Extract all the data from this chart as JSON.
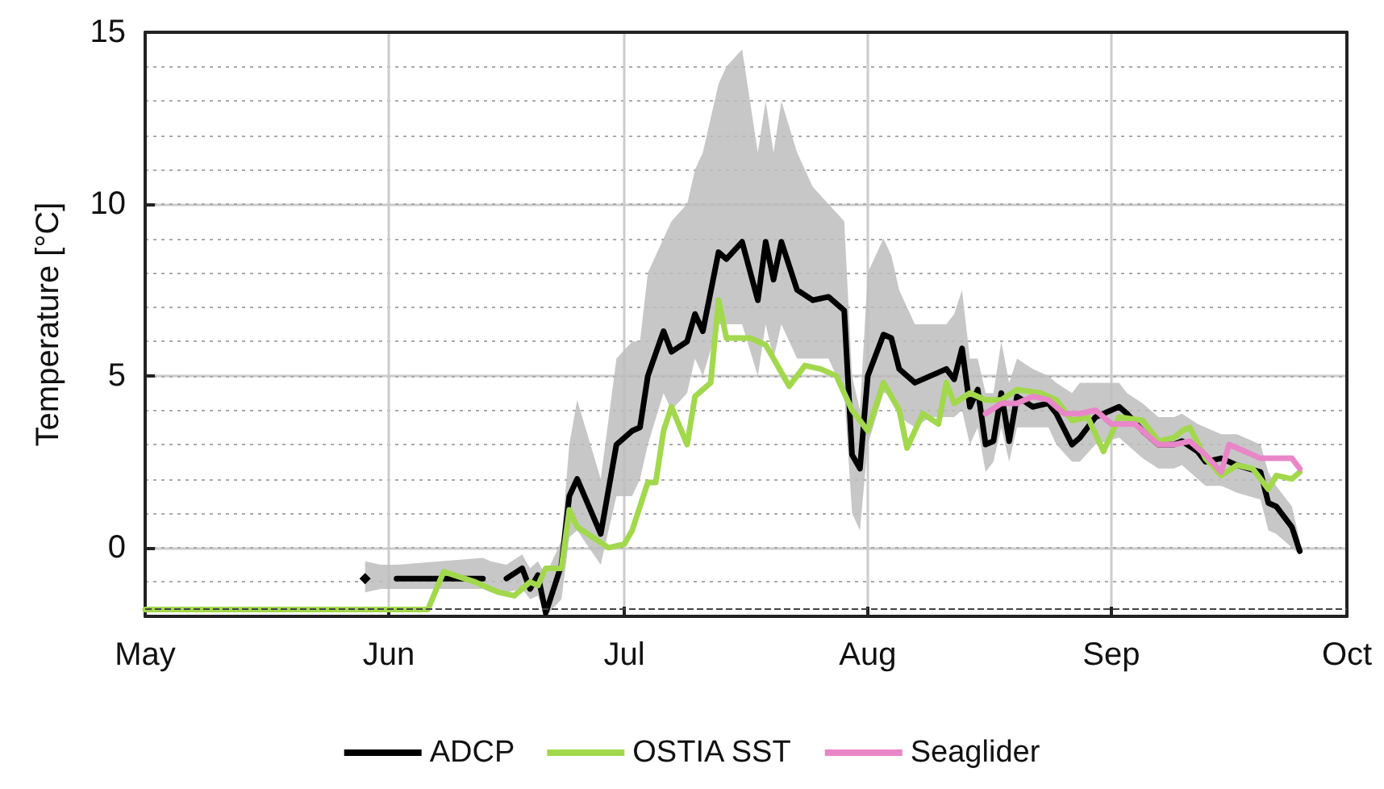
{
  "chart_data": {
    "type": "line",
    "ylabel": "Temperature [°C]",
    "xlim": [
      "--05-01",
      "--10-01"
    ],
    "xticks": [
      {
        "value": "--05-01",
        "label": "May"
      },
      {
        "value": "--06-01",
        "label": "Jun"
      },
      {
        "value": "--07-01",
        "label": "Jul"
      },
      {
        "value": "--08-01",
        "label": "Aug"
      },
      {
        "value": "--09-01",
        "label": "Sep"
      },
      {
        "value": "--10-01",
        "label": "Oct"
      }
    ],
    "ylim": [
      -2,
      15
    ],
    "yticks": [
      0,
      5,
      10,
      15
    ],
    "grid": true,
    "legend": "bottom",
    "marker": "none",
    "line_style": "solid",
    "ref_lines": [
      {
        "axis": "y",
        "value": -1.8,
        "color": "#444444",
        "line_style": "dashed"
      }
    ],
    "series": [
      {
        "name": "ADCP",
        "color": "#000000",
        "x": [
          "--05-29",
          "--05-31",
          "--06-02",
          "--06-13",
          "--06-14",
          "--06-16",
          "--06-18",
          "--06-19",
          "--06-20",
          "--06-21",
          "--06-23",
          "--06-24",
          "--06-25",
          "--06-28",
          "--06-30",
          "--07-02",
          "--07-03",
          "--07-04",
          "--07-06",
          "--07-07",
          "--07-09",
          "--07-10",
          "--07-11",
          "--07-13",
          "--07-14",
          "--07-16",
          "--07-18",
          "--07-19",
          "--07-20",
          "--07-21",
          "--07-23",
          "--07-25",
          "--07-27",
          "--07-29",
          "--07-30",
          "--07-31",
          "--08-01",
          "--08-03",
          "--08-04",
          "--08-05",
          "--08-07",
          "--08-09",
          "--08-11",
          "--08-12",
          "--08-13",
          "--08-14",
          "--08-15",
          "--08-16",
          "--08-17",
          "--08-18",
          "--08-19",
          "--08-20",
          "--08-22",
          "--08-24",
          "--08-25",
          "--08-27",
          "--08-28",
          "--08-30",
          "--09-02",
          "--09-03",
          "--09-05",
          "--09-07",
          "--09-09",
          "--09-10",
          "--09-12",
          "--09-13",
          "--09-15",
          "--09-17",
          "--09-20",
          "--09-21",
          "--09-22",
          "--09-24",
          "--09-25"
        ],
        "values": [
          -0.9,
          null,
          -0.9,
          -0.9,
          null,
          -0.9,
          -0.6,
          -1.2,
          -0.8,
          -1.9,
          -0.5,
          1.5,
          2.0,
          0.4,
          3.0,
          3.4,
          3.5,
          5.0,
          6.3,
          5.7,
          6.0,
          6.8,
          6.3,
          8.6,
          8.4,
          8.9,
          7.2,
          8.9,
          7.8,
          8.9,
          7.5,
          7.2,
          7.3,
          6.9,
          2.7,
          2.3,
          5.0,
          6.2,
          6.1,
          5.2,
          4.8,
          5.0,
          5.2,
          4.9,
          5.8,
          4.1,
          4.6,
          3.0,
          3.1,
          4.5,
          3.1,
          4.4,
          4.1,
          4.2,
          3.9,
          3.0,
          3.2,
          3.8,
          4.1,
          3.9,
          3.4,
          3.0,
          3.0,
          3.1,
          2.8,
          2.5,
          2.6,
          2.4,
          2.2,
          1.3,
          1.2,
          0.6,
          -0.1
        ],
        "lower": [
          -1.3,
          -1.2,
          -1.2,
          -1.2,
          -1.3,
          -1.3,
          -1.2,
          -1.5,
          -1.4,
          -2.0,
          -1.5,
          0.3,
          0.5,
          -0.5,
          1.5,
          1.5,
          2.0,
          3.0,
          4.5,
          4.0,
          4.5,
          5.5,
          5.0,
          6.5,
          6.5,
          6.5,
          5.0,
          6.5,
          5.5,
          6.5,
          5.5,
          5.5,
          5.5,
          4.5,
          1.0,
          0.5,
          3.0,
          4.5,
          4.5,
          3.8,
          3.5,
          3.8,
          3.8,
          3.8,
          4.0,
          3.0,
          3.5,
          2.2,
          2.5,
          3.5,
          2.5,
          3.5,
          3.5,
          3.5,
          3.0,
          2.5,
          2.5,
          3.0,
          3.2,
          3.0,
          2.6,
          2.3,
          2.3,
          2.4,
          2.0,
          1.8,
          1.8,
          1.6,
          1.4,
          0.5,
          0.4,
          0.0,
          -0.2
        ],
        "upper": [
          -0.4,
          -0.5,
          -0.5,
          -0.3,
          -0.4,
          -0.5,
          -0.2,
          -0.6,
          -0.4,
          -0.8,
          0.2,
          3.0,
          4.3,
          2.0,
          5.5,
          6.0,
          6.0,
          8.0,
          9.0,
          9.5,
          10.0,
          11.0,
          11.5,
          13.5,
          14.0,
          14.5,
          11.5,
          13.0,
          11.5,
          13.0,
          11.5,
          10.5,
          10.0,
          9.5,
          5.0,
          4.0,
          8.0,
          9.0,
          8.5,
          7.5,
          6.5,
          6.5,
          6.5,
          6.8,
          7.5,
          5.5,
          5.5,
          4.5,
          4.5,
          6.0,
          4.8,
          5.5,
          5.2,
          5.0,
          4.8,
          4.5,
          4.8,
          4.8,
          4.8,
          4.5,
          4.2,
          3.8,
          3.8,
          3.9,
          3.6,
          3.5,
          3.3,
          3.3,
          3.0,
          2.2,
          1.8,
          1.2,
          0.2
        ]
      },
      {
        "name": "OSTIA SST",
        "color": "#a2d84c",
        "x": [
          "--05-01",
          "--06-06",
          "--06-08",
          "--06-12",
          "--06-15",
          "--06-17",
          "--06-19",
          "--06-20",
          "--06-21",
          "--06-23",
          "--06-24",
          "--06-25",
          "--06-29",
          "--07-01",
          "--07-02",
          "--07-04",
          "--07-05",
          "--07-06",
          "--07-07",
          "--07-09",
          "--07-10",
          "--07-12",
          "--07-13",
          "--07-14",
          "--07-17",
          "--07-19",
          "--07-20",
          "--07-22",
          "--07-24",
          "--07-26",
          "--07-28",
          "--07-30",
          "--08-01",
          "--08-03",
          "--08-05",
          "--08-06",
          "--08-08",
          "--08-10",
          "--08-11",
          "--08-12",
          "--08-14",
          "--08-16",
          "--08-18",
          "--08-20",
          "--08-23",
          "--08-25",
          "--08-27",
          "--08-29",
          "--08-31",
          "--09-02",
          "--09-05",
          "--09-07",
          "--09-09",
          "--09-10",
          "--09-11",
          "--09-13",
          "--09-15",
          "--09-17",
          "--09-19",
          "--09-20",
          "--09-21",
          "--09-22",
          "--09-24",
          "--09-25"
        ],
        "values": [
          -1.8,
          -1.8,
          -0.7,
          -1.0,
          -1.3,
          -1.4,
          -1.0,
          -1.1,
          -0.6,
          -0.6,
          1.1,
          0.6,
          0.0,
          0.1,
          0.5,
          1.9,
          1.9,
          3.4,
          4.1,
          3.0,
          4.4,
          4.8,
          7.2,
          6.1,
          6.1,
          5.9,
          5.5,
          4.7,
          5.3,
          5.2,
          5.0,
          4.0,
          3.4,
          4.8,
          4.0,
          2.9,
          3.9,
          3.6,
          4.8,
          4.2,
          4.5,
          4.3,
          4.3,
          4.6,
          4.5,
          4.3,
          3.7,
          3.8,
          2.8,
          3.8,
          3.7,
          3.1,
          3.2,
          3.4,
          3.5,
          2.6,
          2.1,
          2.4,
          2.3,
          2.0,
          1.7,
          2.1,
          2.0,
          2.2
        ]
      },
      {
        "name": "Seaglider",
        "color": "#e886c8",
        "x": [
          "--08-16",
          "--08-18",
          "--08-20",
          "--08-22",
          "--08-24",
          "--08-26",
          "--08-28",
          "--08-30",
          "--09-01",
          "--09-04",
          "--09-06",
          "--09-07",
          "--09-09",
          "--09-11",
          "--09-13",
          "--09-15",
          "--09-16",
          "--09-18",
          "--09-20",
          "--09-22",
          "--09-24",
          "--09-25"
        ],
        "values": [
          3.9,
          4.2,
          4.2,
          4.4,
          4.3,
          3.9,
          3.9,
          4.0,
          3.6,
          3.6,
          3.2,
          3.0,
          3.0,
          3.1,
          2.7,
          2.2,
          3.0,
          2.8,
          2.6,
          2.6,
          2.6,
          2.3
        ]
      }
    ]
  }
}
